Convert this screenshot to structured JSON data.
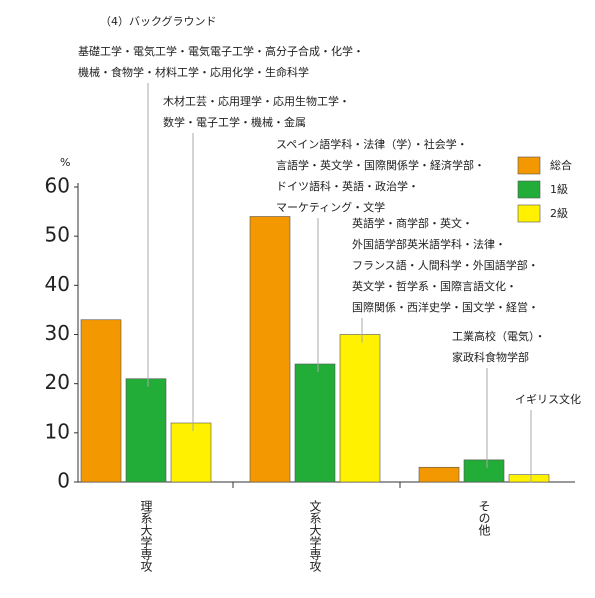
{
  "chart_data": {
    "type": "bar",
    "title": "（4）バックグラウンド",
    "y_label": "%",
    "categories": [
      "理系大学専攻",
      "文系大学専攻",
      "その他"
    ],
    "series": [
      {
        "name": "総合",
        "color": "#f39800",
        "values": [
          33,
          54,
          3
        ]
      },
      {
        "name": "1級",
        "color": "#22ac38",
        "values": [
          21,
          24,
          4.5
        ]
      },
      {
        "name": "2級",
        "color": "#fff100",
        "values": [
          12,
          30,
          1.5
        ]
      }
    ],
    "ylim": [
      0,
      60
    ],
    "yticks": [
      0,
      10,
      20,
      30,
      40,
      50,
      60
    ],
    "annotations": [
      {
        "lines": [
          "基礎工学・電気工学・電気電子工学・高分子合成・化学・",
          "機械・食物学・材料工学・応用化学・生命科学"
        ]
      },
      {
        "lines": [
          "木材工芸・応用理学・応用生物工学・",
          "数学・電子工学・機械・金属"
        ]
      },
      {
        "lines": [
          "スペイン語学科・法律（学）・社会学・",
          "言語学・英文学・国際関係学・経済学部・",
          "ドイツ語科・英語・政治学・",
          "マーケティング・文学"
        ]
      },
      {
        "lines": [
          "英語学・商学部・英文・",
          "外国語学部英米語学科・法律・",
          "フランス語・人間科学・外国語学部・",
          "英文学・哲学系・国際言語文化・",
          "国際関係・西洋史学・国文学・経営・"
        ]
      },
      {
        "lines": [
          "工業高校（電気）・",
          "家政科食物学部"
        ]
      },
      {
        "lines": [
          "イギリス文化"
        ]
      }
    ]
  }
}
